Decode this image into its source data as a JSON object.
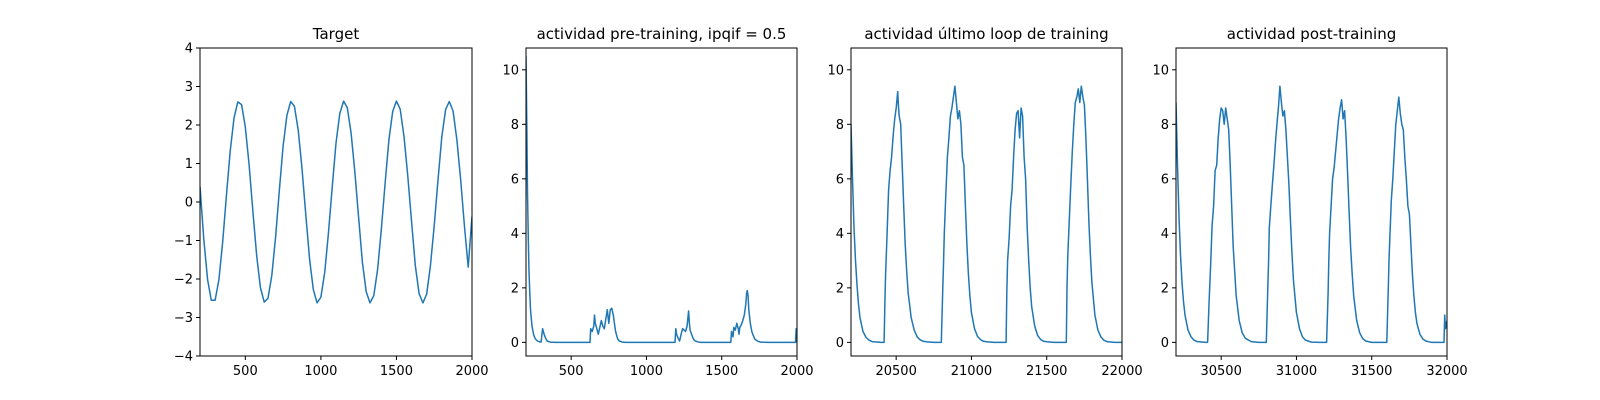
{
  "chart_data": [
    {
      "type": "line",
      "title": "Target",
      "xlim": [
        200,
        2000
      ],
      "ylim": [
        -4,
        4
      ],
      "xticks": [
        500,
        1000,
        1500,
        2000
      ],
      "yticks": [
        -4,
        -3,
        -2,
        -1,
        0,
        1,
        2,
        3,
        4
      ],
      "grid": false,
      "line_color": "#1f77b4",
      "series": [
        {
          "x": [
            200,
            225,
            250,
            275,
            300,
            325,
            350,
            375,
            400,
            425,
            450,
            475,
            500,
            525,
            550,
            575,
            600,
            625,
            650,
            675,
            700,
            725,
            750,
            775,
            800,
            825,
            850,
            875,
            900,
            925,
            950,
            975,
            1000,
            1025,
            1050,
            1075,
            1100,
            1125,
            1150,
            1175,
            1200,
            1225,
            1250,
            1275,
            1300,
            1325,
            1350,
            1375,
            1400,
            1425,
            1450,
            1475,
            1500,
            1525,
            1550,
            1575,
            1600,
            1625,
            1650,
            1675,
            1700,
            1725,
            1750,
            1775,
            1800,
            1825,
            1850,
            1875,
            1900,
            1925,
            1950,
            1975,
            2000
          ],
          "y": [
            0.4,
            -0.97,
            -2.02,
            -2.55,
            -2.55,
            -2.02,
            -1.03,
            0.16,
            1.32,
            2.18,
            2.6,
            2.53,
            1.95,
            0.97,
            -0.25,
            -1.4,
            -2.22,
            -2.6,
            -2.5,
            -1.91,
            -0.91,
            0.29,
            1.45,
            2.25,
            2.61,
            2.49,
            1.87,
            0.87,
            -0.33,
            -1.49,
            -2.27,
            -2.62,
            -2.47,
            -1.83,
            -0.82,
            0.38,
            1.53,
            2.3,
            2.62,
            2.45,
            1.79,
            0.77,
            -0.43,
            -1.57,
            -2.33,
            -2.62,
            -2.43,
            -1.75,
            -0.72,
            0.48,
            1.61,
            2.35,
            2.62,
            2.41,
            1.7,
            0.67,
            -0.52,
            -1.65,
            -2.38,
            -2.62,
            -2.39,
            -1.66,
            -0.62,
            0.57,
            1.69,
            2.4,
            2.61,
            2.36,
            1.61,
            0.57,
            -0.61,
            -1.69,
            -0.38
          ]
        }
      ]
    },
    {
      "type": "line",
      "title": "actividad pre-training, ipqif = 0.5",
      "xlim": [
        200,
        2000
      ],
      "ylim": [
        -0.5,
        10.8
      ],
      "xticks": [
        500,
        1000,
        1500,
        2000
      ],
      "yticks": [
        0,
        2,
        4,
        6,
        8,
        10
      ],
      "grid": false,
      "line_color": "#1f77b4",
      "series": [
        {
          "x": [
            200,
            205,
            210,
            215,
            220,
            225,
            230,
            240,
            250,
            260,
            270,
            280,
            290,
            300,
            310,
            320,
            330,
            340,
            360,
            400,
            500,
            600,
            625,
            630,
            640,
            650,
            655,
            660,
            670,
            680,
            690,
            700,
            710,
            720,
            730,
            740,
            750,
            760,
            770,
            780,
            790,
            795,
            800,
            805,
            810,
            820,
            840,
            860,
            880,
            900,
            1000,
            1100,
            1190,
            1195,
            1200,
            1210,
            1220,
            1230,
            1240,
            1260,
            1270,
            1280,
            1285,
            1290,
            1300,
            1310,
            1320,
            1340,
            1360,
            1400,
            1500,
            1560,
            1565,
            1570,
            1575,
            1580,
            1590,
            1600,
            1610,
            1615,
            1620,
            1630,
            1640,
            1650,
            1660,
            1665,
            1670,
            1675,
            1680,
            1690,
            1700,
            1710,
            1720,
            1740,
            1760,
            1800,
            1900,
            1990,
            1995,
            2000
          ],
          "y": [
            10.5,
            8.0,
            5.5,
            3.8,
            2.6,
            1.8,
            1.2,
            0.6,
            0.3,
            0.15,
            0.08,
            0.04,
            0.02,
            0.01,
            0.5,
            0.3,
            0.15,
            0.05,
            0.01,
            0.0,
            0.0,
            0.0,
            0.0,
            0.5,
            0.4,
            0.6,
            1.0,
            0.7,
            0.5,
            0.3,
            0.55,
            0.8,
            0.6,
            0.5,
            0.85,
            1.2,
            0.7,
            1.2,
            1.25,
            1.0,
            0.6,
            0.4,
            0.3,
            0.2,
            0.12,
            0.05,
            0.01,
            0.0,
            0.0,
            0.0,
            0.0,
            0.0,
            0.0,
            0.5,
            0.3,
            0.15,
            0.05,
            0.3,
            0.5,
            0.4,
            0.6,
            1.15,
            0.7,
            0.45,
            0.3,
            0.15,
            0.06,
            0.02,
            0.0,
            0.0,
            0.0,
            0.0,
            0.4,
            0.3,
            0.2,
            0.55,
            0.45,
            0.7,
            0.5,
            0.3,
            0.55,
            0.65,
            0.8,
            1.0,
            1.4,
            1.8,
            1.9,
            1.7,
            1.2,
            0.7,
            0.4,
            0.25,
            0.12,
            0.04,
            0.01,
            0.0,
            0.0,
            0.0,
            0.5,
            0.0
          ]
        }
      ]
    },
    {
      "type": "line",
      "title": "actividad último loop de training",
      "xlim": [
        20200,
        22000
      ],
      "ylim": [
        -0.5,
        10.8
      ],
      "xticks": [
        20500,
        21000,
        21500,
        22000
      ],
      "yticks": [
        0,
        2,
        4,
        6,
        8,
        10
      ],
      "grid": false,
      "line_color": "#1f77b4",
      "series": [
        {
          "x": [
            20200,
            20210,
            20220,
            20230,
            20240,
            20250,
            20260,
            20280,
            20300,
            20320,
            20340,
            20350,
            20400,
            20420,
            20425,
            20430,
            20440,
            20450,
            20460,
            20470,
            20480,
            20490,
            20500,
            20510,
            20515,
            20520,
            20530,
            20540,
            20550,
            20560,
            20570,
            20580,
            20600,
            20620,
            20640,
            20660,
            20680,
            20700,
            20750,
            20800,
            20810,
            20815,
            20820,
            20830,
            20840,
            20850,
            20860,
            20870,
            20880,
            20890,
            20900,
            20910,
            20920,
            20930,
            20940,
            20950,
            20960,
            20970,
            20980,
            20990,
            21000,
            21020,
            21040,
            21060,
            21080,
            21100,
            21150,
            21200,
            21230,
            21235,
            21240,
            21250,
            21260,
            21270,
            21280,
            21290,
            21300,
            21310,
            21320,
            21330,
            21340,
            21350,
            21360,
            21370,
            21380,
            21390,
            21400,
            21420,
            21440,
            21460,
            21480,
            21500,
            21550,
            21600,
            21630,
            21635,
            21640,
            21650,
            21660,
            21670,
            21680,
            21690,
            21700,
            21710,
            21720,
            21730,
            21740,
            21750,
            21760,
            21770,
            21780,
            21790,
            21800,
            21820,
            21840,
            21860,
            21880,
            21900,
            21950,
            22000
          ],
          "y": [
            8.0,
            6.0,
            4.2,
            3.0,
            2.1,
            1.4,
            0.9,
            0.4,
            0.18,
            0.08,
            0.03,
            0.02,
            0.0,
            0.0,
            1.5,
            2.5,
            4.0,
            5.6,
            6.3,
            6.8,
            7.6,
            8.2,
            8.6,
            9.2,
            8.7,
            8.3,
            8.0,
            6.5,
            5.0,
            3.6,
            2.6,
            1.8,
            0.9,
            0.45,
            0.2,
            0.09,
            0.04,
            0.02,
            0.0,
            0.0,
            2.0,
            3.0,
            4.0,
            5.5,
            6.8,
            7.5,
            8.3,
            8.6,
            9.0,
            9.4,
            8.8,
            8.2,
            8.5,
            8.0,
            6.8,
            6.5,
            5.0,
            3.6,
            2.5,
            1.7,
            1.1,
            0.5,
            0.22,
            0.1,
            0.04,
            0.02,
            0.0,
            0.0,
            0.0,
            1.8,
            3.0,
            3.8,
            5.0,
            5.6,
            6.8,
            7.8,
            8.4,
            8.5,
            7.5,
            8.6,
            8.3,
            6.8,
            6.0,
            4.2,
            3.0,
            2.0,
            1.3,
            0.6,
            0.25,
            0.1,
            0.04,
            0.02,
            0.0,
            0.0,
            0.0,
            2.0,
            3.2,
            4.5,
            5.8,
            7.0,
            8.0,
            8.8,
            9.0,
            9.3,
            8.8,
            9.4,
            9.0,
            8.7,
            7.5,
            6.0,
            4.4,
            3.2,
            2.2,
            1.0,
            0.45,
            0.2,
            0.08,
            0.03,
            0.0,
            0.0
          ]
        }
      ]
    },
    {
      "type": "line",
      "title": "actividad post-training",
      "xlim": [
        30200,
        32000
      ],
      "ylim": [
        -0.5,
        10.8
      ],
      "xticks": [
        30500,
        31000,
        31500,
        32000
      ],
      "yticks": [
        0,
        2,
        4,
        6,
        8,
        10
      ],
      "grid": false,
      "line_color": "#1f77b4",
      "series": [
        {
          "x": [
            30200,
            30210,
            30220,
            30230,
            30240,
            30250,
            30260,
            30280,
            30300,
            30320,
            30340,
            30350,
            30400,
            30410,
            30420,
            30430,
            30440,
            30450,
            30460,
            30470,
            30480,
            30490,
            30500,
            30510,
            30520,
            30530,
            30540,
            30550,
            30560,
            30570,
            30580,
            30600,
            30620,
            30640,
            30660,
            30700,
            30750,
            30800,
            30810,
            30815,
            30820,
            30830,
            30840,
            30850,
            30860,
            30870,
            30880,
            30890,
            30900,
            30910,
            30920,
            30930,
            30940,
            30950,
            30960,
            30970,
            30980,
            31000,
            31020,
            31040,
            31060,
            31100,
            31150,
            31200,
            31210,
            31215,
            31220,
            31230,
            31240,
            31250,
            31260,
            31270,
            31280,
            31290,
            31300,
            31310,
            31320,
            31330,
            31340,
            31350,
            31360,
            31370,
            31380,
            31400,
            31420,
            31440,
            31460,
            31500,
            31550,
            31600,
            31610,
            31615,
            31620,
            31630,
            31640,
            31650,
            31660,
            31670,
            31680,
            31690,
            31700,
            31710,
            31720,
            31730,
            31740,
            31750,
            31760,
            31770,
            31780,
            31790,
            31800,
            31820,
            31840,
            31860,
            31880,
            31900,
            31950,
            31980,
            31985,
            31990,
            32000
          ],
          "y": [
            8.8,
            6.5,
            4.6,
            3.2,
            2.2,
            1.5,
            1.0,
            0.45,
            0.2,
            0.08,
            0.03,
            0.02,
            0.0,
            0.0,
            1.5,
            2.8,
            4.3,
            5.0,
            6.3,
            6.5,
            7.5,
            8.2,
            8.6,
            8.5,
            8.0,
            8.6,
            8.2,
            7.8,
            6.5,
            5.0,
            3.5,
            1.7,
            0.8,
            0.35,
            0.15,
            0.03,
            0.0,
            0.0,
            2.0,
            3.0,
            4.2,
            5.0,
            5.8,
            6.5,
            7.3,
            8.0,
            8.6,
            9.4,
            8.8,
            8.3,
            8.5,
            7.8,
            6.8,
            5.8,
            4.5,
            3.3,
            2.3,
            1.1,
            0.5,
            0.2,
            0.08,
            0.01,
            0.0,
            0.0,
            1.8,
            3.0,
            4.0,
            5.0,
            6.0,
            6.4,
            7.0,
            7.6,
            8.2,
            8.6,
            8.9,
            8.2,
            8.5,
            7.5,
            6.2,
            4.8,
            3.5,
            2.5,
            1.7,
            0.8,
            0.35,
            0.14,
            0.05,
            0.0,
            0.0,
            0.0,
            2.0,
            3.0,
            3.8,
            5.2,
            6.0,
            7.0,
            8.0,
            8.5,
            9.0,
            8.4,
            8.0,
            7.8,
            6.8,
            6.0,
            5.0,
            4.7,
            3.6,
            2.5,
            1.7,
            1.1,
            0.7,
            0.3,
            0.12,
            0.05,
            0.02,
            0.0,
            0.0,
            0.0,
            1.0,
            0.5,
            0.8
          ]
        }
      ]
    }
  ]
}
